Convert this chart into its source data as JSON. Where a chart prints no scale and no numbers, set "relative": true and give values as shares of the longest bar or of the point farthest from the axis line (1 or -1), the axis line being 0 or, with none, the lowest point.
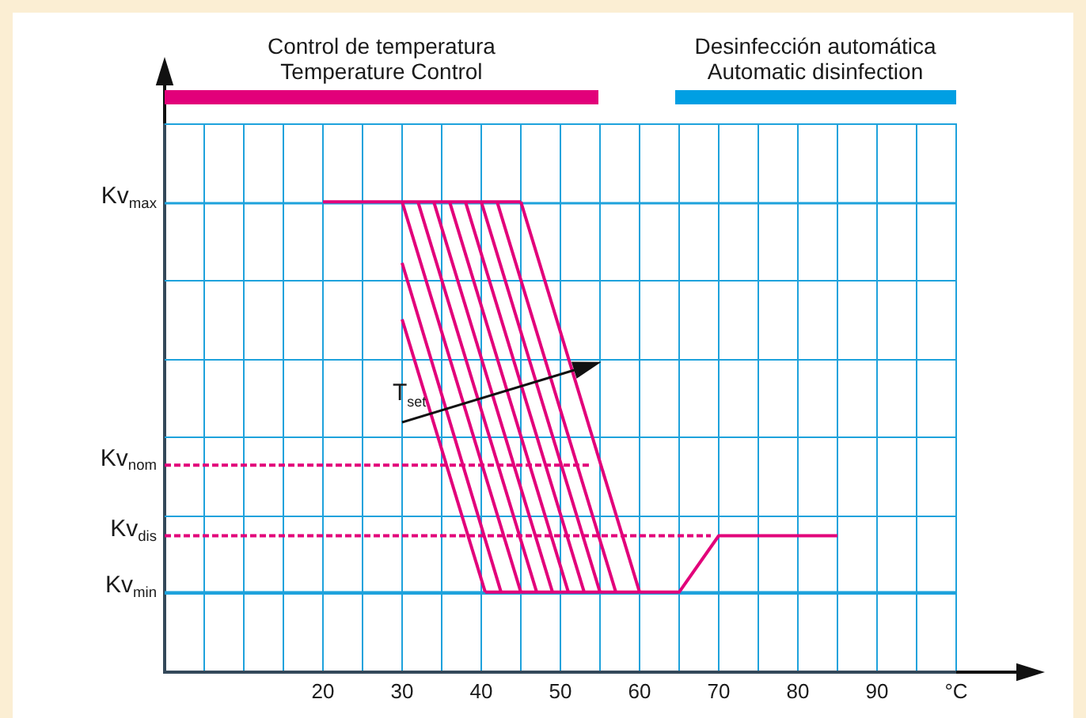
{
  "chart_data": {
    "type": "line",
    "relative": true,
    "xlim": [
      0,
      100
    ],
    "xticks": [
      {
        "value": 5,
        "label": null
      },
      {
        "value": 10,
        "label": null
      },
      {
        "value": 15,
        "label": null
      },
      20,
      {
        "value": 25,
        "label": null
      },
      30,
      {
        "value": 35,
        "label": null
      },
      40,
      {
        "value": 45,
        "label": null
      },
      50,
      {
        "value": 55,
        "label": null
      },
      60,
      {
        "value": 65,
        "label": null
      },
      70,
      {
        "value": 75,
        "label": null
      },
      80,
      {
        "value": 85,
        "label": null
      },
      90,
      {
        "value": 95,
        "label": null
      },
      {
        "value": 100,
        "label": "°C"
      }
    ],
    "grid": true,
    "legend": false,
    "marker": "none",
    "line_style": "solid",
    "ref_lines": [
      {
        "axis": "y",
        "value": 1,
        "label": "Kv$_{max}$",
        "color": "#1ea2dc"
      },
      {
        "axis": "y",
        "value": 0.17,
        "label": "Kv$_{min}$",
        "color": "#1ea2dc"
      }
    ],
    "annotations": [
      "Control de temperatura\nTemperature Control",
      "Desinfección automática\nAutomatic disinfection",
      "T$_{set}$"
    ],
    "series": [
      {
        "name": "Kv$_{nom}$",
        "color": "#e2007a",
        "line_style": "dashed",
        "x": [
          0,
          54
        ],
        "values": [
          0.44,
          0.44
        ]
      },
      {
        "name": "Kv$_{dis}$",
        "color": "#e2007a",
        "line_style": "dashed",
        "x": [
          0,
          69
        ],
        "values": [
          0.29,
          0.29
        ]
      },
      {
        "color": "#e2007a",
        "x": [
          20,
          45
        ],
        "values": [
          1,
          1
        ]
      },
      {
        "color": "#e2007a",
        "x": [
          40.5,
          65,
          70,
          85
        ],
        "values": [
          0.17,
          0.17,
          0.29,
          0.29
        ]
      },
      {
        "color": "#e2007a",
        "x": [
          30,
          40.5
        ],
        "values": [
          0.75,
          0.17
        ]
      },
      {
        "color": "#e2007a",
        "x": [
          30,
          42.5
        ],
        "values": [
          0.87,
          0.17
        ]
      },
      {
        "color": "#e2007a",
        "x": [
          30,
          45
        ],
        "values": [
          1,
          0.17
        ]
      },
      {
        "color": "#e2007a",
        "x": [
          32,
          47
        ],
        "values": [
          1,
          0.17
        ]
      },
      {
        "color": "#e2007a",
        "x": [
          34,
          49
        ],
        "values": [
          1,
          0.17
        ]
      },
      {
        "color": "#e2007a",
        "x": [
          36,
          51
        ],
        "values": [
          1,
          0.17
        ]
      },
      {
        "color": "#e2007a",
        "x": [
          38,
          53
        ],
        "values": [
          1,
          0.17
        ]
      },
      {
        "color": "#e2007a",
        "x": [
          40,
          55
        ],
        "values": [
          1,
          0.17
        ]
      },
      {
        "color": "#e2007a",
        "x": [
          42,
          57
        ],
        "values": [
          1,
          0.17
        ]
      },
      {
        "color": "#e2007a",
        "x": [
          45,
          60
        ],
        "values": [
          1,
          0.17
        ]
      }
    ]
  }
}
